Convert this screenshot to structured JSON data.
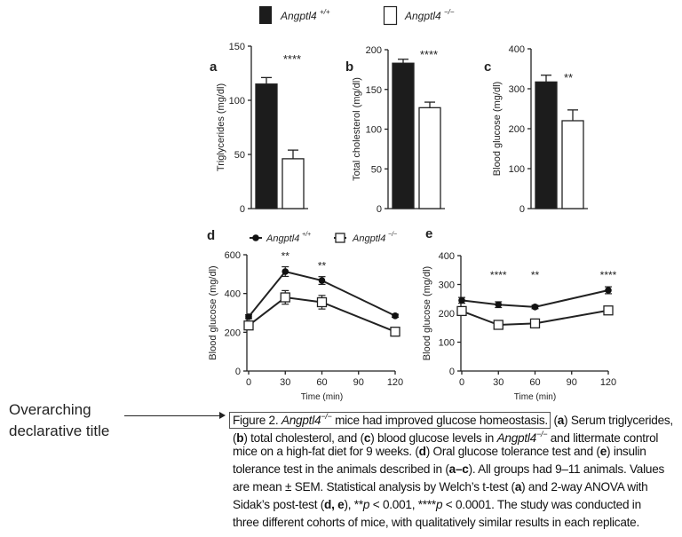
{
  "legend": {
    "wt": "Angptl4",
    "wt_sup": "+/+",
    "ko": "Angptl4",
    "ko_sup": "−/−"
  },
  "colors": {
    "wt": "#1c1c1c",
    "ko": "#ffffff",
    "axis": "#222222"
  },
  "chart_data": [
    {
      "panel": "a",
      "type": "bar",
      "ylabel": "Triglycerides (mg/dl)",
      "ylim": [
        0,
        150
      ],
      "yticks": [
        "0",
        "50",
        "100",
        "150"
      ],
      "categories": [
        "Angptl4+/+",
        "Angptl4−/−"
      ],
      "values": [
        115,
        46
      ],
      "errors": [
        6,
        8
      ],
      "significance": "****"
    },
    {
      "panel": "b",
      "type": "bar",
      "ylabel": "Total cholesterol (mg/dl)",
      "ylim": [
        0,
        200
      ],
      "yticks": [
        "0",
        "50",
        "100",
        "150",
        "200"
      ],
      "categories": [
        "Angptl4+/+",
        "Angptl4−/−"
      ],
      "values": [
        183,
        127
      ],
      "errors": [
        5,
        7
      ],
      "significance": "****"
    },
    {
      "panel": "c",
      "type": "bar",
      "ylabel": "Blood glucose (mg/dl)",
      "ylim": [
        0,
        400
      ],
      "yticks": [
        "0",
        "100",
        "200",
        "300",
        "400"
      ],
      "categories": [
        "Angptl4+/+",
        "Angptl4−/−"
      ],
      "values": [
        317,
        220
      ],
      "errors": [
        17,
        27
      ],
      "significance": "**"
    },
    {
      "panel": "d",
      "type": "line",
      "xlabel": "Time (min)",
      "ylabel": "Blood glucose (mg/dl)",
      "xlim": [
        0,
        120
      ],
      "ylim": [
        0,
        600
      ],
      "xticks": [
        "0",
        "30",
        "60",
        "90",
        "120"
      ],
      "yticks": [
        "0",
        "200",
        "400",
        "600"
      ],
      "x": [
        0,
        30,
        60,
        120
      ],
      "series": [
        {
          "name": "Angptl4+/+",
          "values": [
            280,
            513,
            467,
            285
          ],
          "errors": [
            10,
            25,
            20,
            8
          ]
        },
        {
          "name": "Angptl4−/−",
          "values": [
            235,
            380,
            355,
            203
          ],
          "errors": [
            18,
            35,
            35,
            22
          ]
        }
      ],
      "significance": [
        {
          "x": 30,
          "label": "**"
        },
        {
          "x": 60,
          "label": "**"
        }
      ]
    },
    {
      "panel": "e",
      "type": "line",
      "xlabel": "Time (min)",
      "ylabel": "Blood glucose (mg/dl)",
      "xlim": [
        0,
        120
      ],
      "ylim": [
        0,
        400
      ],
      "xticks": [
        "0",
        "30",
        "60",
        "90",
        "120"
      ],
      "yticks": [
        "0",
        "100",
        "200",
        "300",
        "400"
      ],
      "x": [
        0,
        30,
        60,
        120
      ],
      "series": [
        {
          "name": "Angptl4+/+",
          "values": [
            245,
            230,
            222,
            280
          ],
          "errors": [
            10,
            10,
            6,
            12
          ]
        },
        {
          "name": "Angptl4−/−",
          "values": [
            208,
            160,
            165,
            210
          ],
          "errors": [
            6,
            5,
            5,
            8
          ]
        }
      ],
      "significance": [
        {
          "x": 30,
          "label": "****"
        },
        {
          "x": 60,
          "label": "**"
        },
        {
          "x": 120,
          "label": "****"
        }
      ]
    }
  ],
  "annotation": {
    "line1": "Overarching",
    "line2": "declarative title"
  },
  "caption": {
    "title": [
      {
        "t": "Figure 2. "
      },
      {
        "t": "Angptl4",
        "s": "i"
      },
      {
        "t": "−/−",
        "s": "sup"
      },
      {
        "t": " mice had improved glucose homeostasis."
      }
    ],
    "lines": [
      [
        {
          "t": " ("
        },
        {
          "t": "a",
          "s": "b"
        },
        {
          "t": ") Serum triglycerides,"
        }
      ],
      [
        {
          "t": "("
        },
        {
          "t": "b",
          "s": "b"
        },
        {
          "t": ") total cholesterol, and ("
        },
        {
          "t": "c",
          "s": "b"
        },
        {
          "t": ") blood glucose levels in "
        },
        {
          "t": "Angptl4",
          "s": "i"
        },
        {
          "t": "−/−",
          "s": "sup"
        },
        {
          "t": " and littermate control"
        }
      ],
      [
        {
          "t": "mice on a high-fat diet for 9 weeks. ("
        },
        {
          "t": "d",
          "s": "b"
        },
        {
          "t": ") Oral glucose tolerance test and ("
        },
        {
          "t": "e",
          "s": "b"
        },
        {
          "t": ") insulin"
        }
      ],
      [
        {
          "t": "tolerance test in the animals described in ("
        },
        {
          "t": "a–c",
          "s": "b"
        },
        {
          "t": "). All groups had 9–11 animals. Values"
        }
      ],
      [
        {
          "t": "are mean ± SEM. Statistical analysis by Welch’s t-test ("
        },
        {
          "t": "a",
          "s": "b"
        },
        {
          "t": ") and 2-way ANOVA with"
        }
      ],
      [
        {
          "t": "Sidak’s post-test ("
        },
        {
          "t": "d, e",
          "s": "b"
        },
        {
          "t": "), **"
        },
        {
          "t": "p",
          "s": "i"
        },
        {
          "t": " < 0.001, ****"
        },
        {
          "t": "p",
          "s": "i"
        },
        {
          "t": " < 0.0001. The study was conducted in"
        }
      ],
      [
        {
          "t": "three different cohorts of mice, with qualitatively similar results in each replicate."
        }
      ]
    ]
  }
}
